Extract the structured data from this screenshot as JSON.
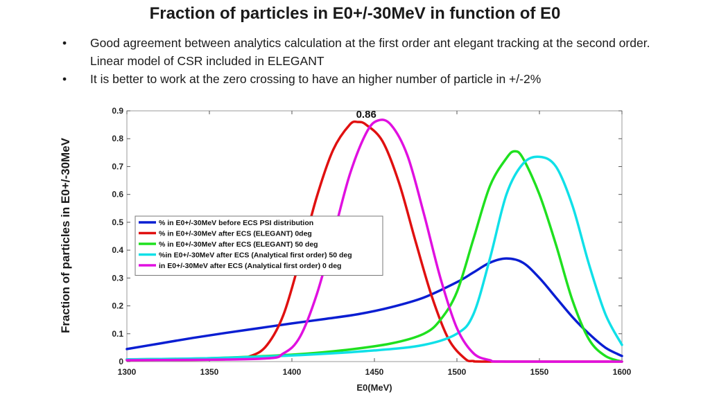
{
  "slide": {
    "title": "Fraction of particles in E0+/-30MeV in function of E0",
    "bullets": [
      "Good agreement between analytics calculation at the first order ant elegant tracking at the second order. Linear model of CSR included in ELEGANT",
      "It is better to work at the zero crossing to have an  higher  number of particle  in +/-2%"
    ],
    "bullet_symbol": "•"
  },
  "chart_data": {
    "type": "line",
    "title": "",
    "xlabel": "E0(MeV)",
    "ylabel": "Fraction of particles in E0+/-30MeV",
    "xlim": [
      1300,
      1600
    ],
    "ylim": [
      0,
      0.9
    ],
    "xticks": [
      1300,
      1350,
      1400,
      1450,
      1500,
      1550,
      1600
    ],
    "yticks": [
      0,
      0.1,
      0.2,
      0.3,
      0.4,
      0.5,
      0.6,
      0.7,
      0.8,
      0.9
    ],
    "grid": false,
    "legend_position": "middle-left",
    "annotations": [
      {
        "text": "0.86",
        "x": 1440,
        "y": 0.86
      }
    ],
    "series": [
      {
        "name": "% in E0+/-30MeV before ECS PSI distribution",
        "color": "#0a1ed2",
        "x": [
          1300,
          1320,
          1340,
          1360,
          1380,
          1400,
          1420,
          1440,
          1460,
          1480,
          1500,
          1510,
          1520,
          1530,
          1540,
          1550,
          1560,
          1570,
          1580,
          1590,
          1600
        ],
        "y": [
          0.045,
          0.065,
          0.085,
          0.103,
          0.12,
          0.137,
          0.153,
          0.17,
          0.195,
          0.23,
          0.285,
          0.32,
          0.355,
          0.37,
          0.355,
          0.3,
          0.23,
          0.16,
          0.1,
          0.05,
          0.02
        ]
      },
      {
        "name": "% in E0+/-30MeV after ECS (ELEGANT) 0deg",
        "color": "#e01010",
        "x": [
          1300,
          1360,
          1375,
          1385,
          1395,
          1405,
          1415,
          1425,
          1435,
          1440,
          1445,
          1455,
          1465,
          1475,
          1485,
          1495,
          1505,
          1510,
          1520,
          1600
        ],
        "y": [
          0.005,
          0.008,
          0.02,
          0.06,
          0.17,
          0.37,
          0.59,
          0.76,
          0.85,
          0.86,
          0.85,
          0.79,
          0.64,
          0.43,
          0.23,
          0.08,
          0.01,
          0.002,
          0.0,
          0.0
        ]
      },
      {
        "name": "% in E0+/-30MeV after ECS (ELEGANT) 50 deg",
        "color": "#1fe01f",
        "x": [
          1300,
          1350,
          1400,
          1430,
          1460,
          1480,
          1490,
          1500,
          1510,
          1520,
          1530,
          1535,
          1540,
          1550,
          1560,
          1570,
          1580,
          1590,
          1600
        ],
        "y": [
          0.008,
          0.012,
          0.025,
          0.04,
          0.065,
          0.1,
          0.15,
          0.25,
          0.44,
          0.63,
          0.73,
          0.755,
          0.73,
          0.6,
          0.42,
          0.22,
          0.08,
          0.02,
          0.0
        ]
      },
      {
        "name": "%in E0+/-30MeV after ECS (Analytical first order) 50 deg",
        "color": "#10e0e8",
        "x": [
          1300,
          1350,
          1400,
          1450,
          1480,
          1500,
          1510,
          1520,
          1530,
          1540,
          1550,
          1560,
          1570,
          1580,
          1590,
          1600
        ],
        "y": [
          0.008,
          0.012,
          0.022,
          0.04,
          0.06,
          0.1,
          0.17,
          0.37,
          0.6,
          0.71,
          0.735,
          0.7,
          0.56,
          0.35,
          0.17,
          0.06
        ]
      },
      {
        "name": "in E0+/-30MeV after ECS (Analytical first order) 0 deg",
        "color": "#e010e0",
        "x": [
          1300,
          1380,
          1395,
          1405,
          1415,
          1425,
          1435,
          1445,
          1452,
          1460,
          1470,
          1480,
          1490,
          1500,
          1510,
          1520,
          1530,
          1600
        ],
        "y": [
          0.005,
          0.01,
          0.03,
          0.09,
          0.24,
          0.45,
          0.67,
          0.82,
          0.865,
          0.85,
          0.74,
          0.53,
          0.3,
          0.12,
          0.03,
          0.005,
          0.0,
          0.0
        ]
      }
    ]
  }
}
